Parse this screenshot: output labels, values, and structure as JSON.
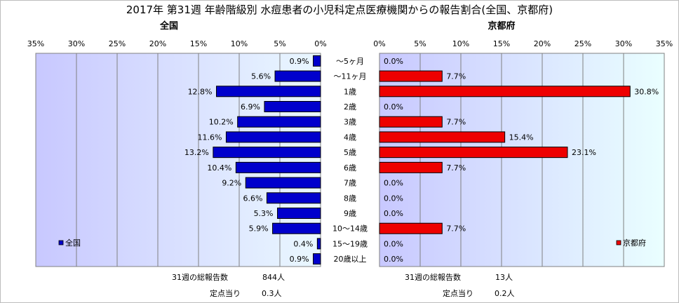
{
  "chart_data": {
    "type": "bar",
    "title": "2017年 第31週 年齢階級別 水痘患者の小児科定点医療機関からの報告割合(全国、京都府)",
    "categories": [
      "～5ヶ月",
      "～11ヶ月",
      "1歳",
      "2歳",
      "3歳",
      "4歳",
      "5歳",
      "6歳",
      "7歳",
      "8歳",
      "9歳",
      "10～14歳",
      "15～19歳",
      "20歳以上"
    ],
    "xlim": [
      0,
      35
    ],
    "ticks": [
      "0%",
      "5%",
      "10%",
      "15%",
      "20%",
      "25%",
      "30%",
      "35%"
    ],
    "orientation": "horizontal",
    "series": [
      {
        "name": "全国",
        "color": "#0000cc",
        "values": [
          0.9,
          5.6,
          12.8,
          6.9,
          10.2,
          11.6,
          13.2,
          10.4,
          9.2,
          6.6,
          5.3,
          5.9,
          0.4,
          0.9
        ],
        "labels": [
          "0.9%",
          "5.6%",
          "12.8%",
          "6.9%",
          "10.2%",
          "11.6%",
          "13.2%",
          "10.4%",
          "9.2%",
          "6.6%",
          "5.3%",
          "5.9%",
          "0.4%",
          "0.9%"
        ],
        "total_label": "31週の総報告数",
        "total_value": "844人",
        "per_label": "定点当り",
        "per_value": "0.3人"
      },
      {
        "name": "京都府",
        "color": "#ee0000",
        "values": [
          0.0,
          7.7,
          30.8,
          0.0,
          7.7,
          15.4,
          23.1,
          7.7,
          0.0,
          0.0,
          0.0,
          7.7,
          0.0,
          0.0
        ],
        "labels": [
          "0.0%",
          "7.7%",
          "30.8%",
          "0.0%",
          "7.7%",
          "15.4%",
          "23.1%",
          "7.7%",
          "0.0%",
          "0.0%",
          "0.0%",
          "7.7%",
          "0.0%",
          "0.0%"
        ],
        "total_label": "31週の総報告数",
        "total_value": "13人",
        "per_label": "定点当り",
        "per_value": "0.2人"
      }
    ],
    "legend": "inside-bottom",
    "grid": true,
    "plot_bg": "#c8c8ff",
    "plot_bg_end": "#ecffff"
  }
}
